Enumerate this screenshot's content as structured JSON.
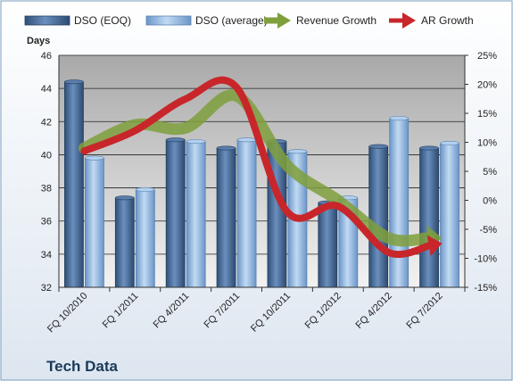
{
  "chart_data": {
    "type": "bar",
    "company": "Tech Data",
    "ylabel_left": "Days",
    "categories": [
      "FQ 10/2010",
      "FQ 1/2011",
      "FQ 4/2011",
      "FQ 7/2011",
      "FQ 10/2011",
      "FQ 1/2012",
      "FQ 4/2012",
      "FQ 7/2012"
    ],
    "bar_series": [
      {
        "name": "DSO (EOQ)",
        "axis": "left",
        "color": "#4a6f9c",
        "values": [
          44.4,
          37.4,
          40.9,
          40.4,
          40.8,
          37.1,
          40.5,
          40.4
        ]
      },
      {
        "name": "DSO (average)",
        "axis": "left",
        "color": "#8fb5e0",
        "values": [
          39.8,
          37.9,
          40.8,
          40.9,
          40.2,
          37.4,
          42.2,
          40.7
        ]
      }
    ],
    "line_series": [
      {
        "name": "Revenue Growth",
        "axis": "right",
        "color": "#7f9f3c",
        "values": [
          0.09,
          0.13,
          0.125,
          0.18,
          0.06,
          0.0,
          -0.065,
          -0.065
        ]
      },
      {
        "name": "AR Growth",
        "axis": "right",
        "color": "#c8262a",
        "values": [
          0.085,
          0.12,
          0.175,
          0.195,
          -0.02,
          -0.01,
          -0.09,
          -0.075
        ]
      }
    ],
    "ylim_left": [
      32,
      46
    ],
    "yticks_left": [
      "32",
      "34",
      "36",
      "38",
      "40",
      "42",
      "44",
      "46"
    ],
    "ylim_right": [
      -0.15,
      0.25
    ],
    "yticks_right": [
      "-15%",
      "-10%",
      "-5%",
      "0%",
      "5%",
      "10%",
      "15%",
      "20%",
      "25%"
    ],
    "legend_position": "top",
    "grid": true
  }
}
